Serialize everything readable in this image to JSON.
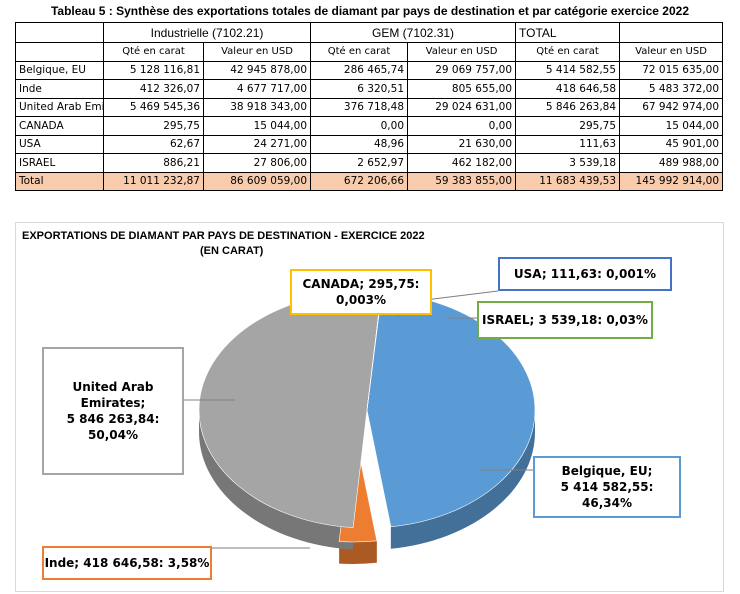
{
  "table": {
    "title": "Tableau 5 : Synthèse des exportations totales de diamant par pays de destination et par catégorie exercice 2022",
    "groups": [
      "Industrielle (7102.21)",
      "GEM (7102.31)",
      "TOTAL"
    ],
    "subheaders": [
      "Qté en carat",
      "Valeur en USD",
      "Qté en carat",
      "Valeur en USD",
      "Qté en carat",
      "Valeur en USD"
    ],
    "rows": [
      {
        "country": "Belgique, EU",
        "cells": [
          "5 128 116,81",
          "42 945 878,00",
          "286 465,74",
          "29 069 757,00",
          "5 414 582,55",
          "72 015 635,00"
        ]
      },
      {
        "country": "Inde",
        "cells": [
          "412 326,07",
          "4 677 717,00",
          "6 320,51",
          "805 655,00",
          "418 646,58",
          "5 483 372,00"
        ]
      },
      {
        "country": "United Arab Emi",
        "cells": [
          "5 469 545,36",
          "38 918 343,00",
          "376 718,48",
          "29 024 631,00",
          "5 846 263,84",
          "67 942 974,00"
        ]
      },
      {
        "country": "CANADA",
        "cells": [
          "295,75",
          "15 044,00",
          "0,00",
          "0,00",
          "295,75",
          "15 044,00"
        ]
      },
      {
        "country": "USA",
        "cells": [
          "62,67",
          "24 271,00",
          "48,96",
          "21 630,00",
          "111,63",
          "45 901,00"
        ]
      },
      {
        "country": "ISRAEL",
        "cells": [
          "886,21",
          "27 806,00",
          "2 652,97",
          "462 182,00",
          "3 539,18",
          "489 988,00"
        ]
      }
    ],
    "total": {
      "country": "Total",
      "cells": [
        "11 011 232,87",
        "86 609 059,00",
        "672 206,66",
        "59 383 855,00",
        "11 683 439,53",
        "145 992 914,00"
      ]
    },
    "total_color": "#f8cbad"
  },
  "chart_data": {
    "type": "pie",
    "title": "EXPORTATIONS DE DIAMANT PAR PAYS DE DESTINATION - EXERCICE 2022",
    "subtitle": "(EN CARAT)",
    "slices": [
      {
        "label": "Belgique, EU",
        "value": 5414582.55,
        "percent": 46.34,
        "color": "#5b9bd5",
        "callout": "Belgique, EU;\n5 414 582,55: 46,34%"
      },
      {
        "label": "Inde",
        "value": 418646.58,
        "percent": 3.58,
        "color": "#ed7d31",
        "callout": "Inde; 418 646,58: 3,58%"
      },
      {
        "label": "United Arab Emirates",
        "value": 5846263.84,
        "percent": 50.04,
        "color": "#a5a5a5",
        "callout": "United Arab\nEmirates;\n5 846 263,84:\n50,04%"
      },
      {
        "label": "CANADA",
        "value": 295.75,
        "percent": 0.003,
        "color": "#ffc000",
        "callout": "CANADA; 295,75:\n0,003%"
      },
      {
        "label": "USA",
        "value": 111.63,
        "percent": 0.001,
        "color": "#4472c4",
        "callout": "USA; 111,63: 0,001%"
      },
      {
        "label": "ISRAEL",
        "value": 3539.18,
        "percent": 0.03,
        "color": "#70ad47",
        "callout": "ISRAEL; 3 539,18: 0,03%"
      }
    ],
    "legend": "none",
    "style": "3d-pie"
  }
}
